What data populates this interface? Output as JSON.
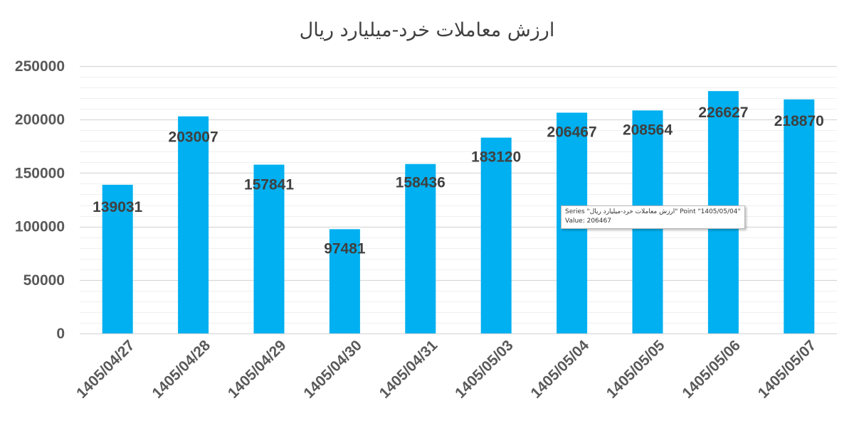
{
  "chart_data": {
    "type": "bar",
    "title": "ارزش معاملات خرد-میلیارد ریال",
    "xlabel": "",
    "ylabel": "",
    "categories": [
      "1405/04/27",
      "1405/04/28",
      "1405/04/29",
      "1405/04/30",
      "1405/04/31",
      "1405/05/03",
      "1405/05/04",
      "1405/05/05",
      "1405/05/06",
      "1405/05/07"
    ],
    "values": [
      139031,
      203007,
      157841,
      97481,
      158436,
      183120,
      206467,
      208564,
      226627,
      218870
    ],
    "y_ticks": [
      "0",
      "50000",
      "100000",
      "150000",
      "200000",
      "250000"
    ],
    "ylim": [
      0,
      250000
    ],
    "grid": true,
    "legend": "none",
    "bar_color": "#00b0f0",
    "grid_major_color": "#d9d9d9",
    "grid_minor_color": "#f0f0f0"
  },
  "tooltip": {
    "line1": "Series \"ارزش معاملات خرد-میلیارد ریال\" Point \"1405/05/04\"",
    "line2": "Value: 206467"
  }
}
